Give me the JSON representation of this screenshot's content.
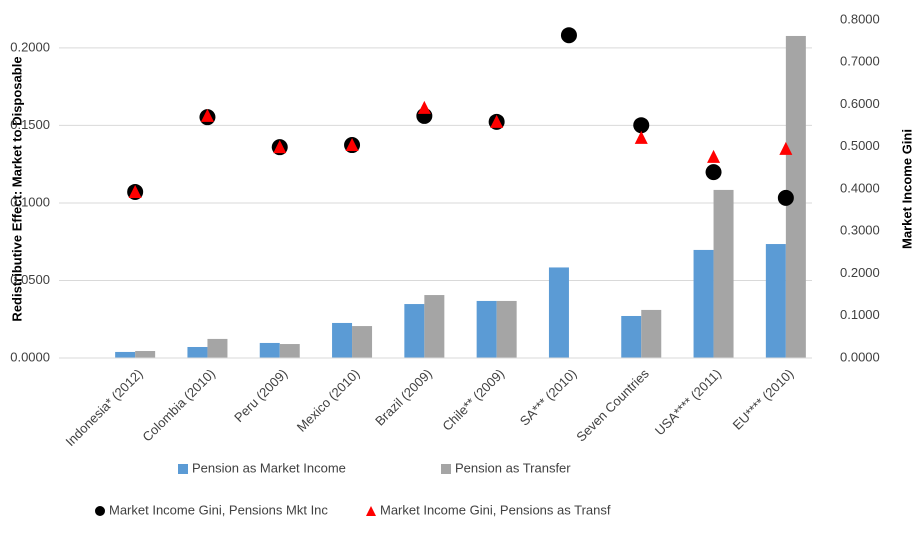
{
  "chart_data": {
    "type": "bar",
    "ylabel": "Redistributive Effect: Market to Disposable",
    "y2label": "Market Income Gini",
    "categories": [
      "Indonesia* (2012)",
      "Colombia (2010)",
      "Peru (2009)",
      "Mexico (2010)",
      "Brazil (2009)",
      "Chile** (2009)",
      "SA*** (2010)",
      "Seven Countries",
      "USA**** (2011)",
      "EU**** (2010)"
    ],
    "series": [
      {
        "name": "Pension as Market Income",
        "color": "#5b9bd5",
        "kind": "bar",
        "values": [
          0.0039,
          0.0071,
          0.0097,
          0.0226,
          0.0348,
          0.0368,
          0.0584,
          0.0271,
          0.0697,
          0.0735
        ]
      },
      {
        "name": "Pension as Transfer",
        "color": "#a5a5a5",
        "kind": "bar",
        "values": [
          0.0045,
          0.0123,
          0.009,
          0.0206,
          0.0406,
          0.0368,
          null,
          0.031,
          0.1084,
          0.2077
        ]
      },
      {
        "name": "Market Income Gini, Pensions Mkt Inc",
        "color": "#000000",
        "kind": "scatter",
        "marker": "circle",
        "axis": "y2",
        "values": [
          0.393,
          0.57,
          0.499,
          0.504,
          0.573,
          0.559,
          0.764,
          0.551,
          0.44,
          0.379
        ]
      },
      {
        "name": "Market Income Gini, Pensions as Transf",
        "color": "#ff0000",
        "kind": "scatter",
        "marker": "triangle",
        "axis": "y2",
        "values": [
          0.393,
          0.573,
          0.499,
          0.504,
          0.592,
          0.559,
          null,
          0.521,
          0.476,
          0.495
        ]
      }
    ],
    "ylim": [
      0,
      0.218
    ],
    "yticks": [
      {
        "value": 0,
        "label": "0.0000"
      },
      {
        "value": 0.05,
        "label": "0.0500"
      },
      {
        "value": 0.1,
        "label": "0.1000"
      },
      {
        "value": 0.15,
        "label": "0.1500"
      },
      {
        "value": 0.2,
        "label": "0.2000"
      }
    ],
    "y2lim": [
      0,
      0.8
    ],
    "y2ticks": [
      {
        "value": 0,
        "label": "0.0000"
      },
      {
        "value": 0.1,
        "label": "0.1000"
      },
      {
        "value": 0.2,
        "label": "0.2000"
      },
      {
        "value": 0.3,
        "label": "0.3000"
      },
      {
        "value": 0.4,
        "label": "0.4000"
      },
      {
        "value": 0.5,
        "label": "0.5000"
      },
      {
        "value": 0.6,
        "label": "0.6000"
      },
      {
        "value": 0.7,
        "label": "0.7000"
      },
      {
        "value": 0.8,
        "label": "0.8000"
      }
    ],
    "grid": true
  }
}
